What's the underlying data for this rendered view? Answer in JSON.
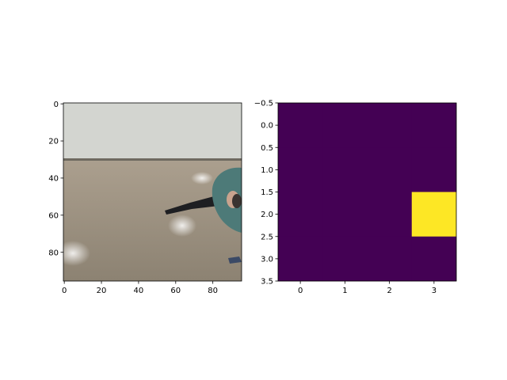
{
  "colors": {
    "background": "#ffffff",
    "axes": "#000000",
    "viridis_low": "#440154",
    "viridis_high": "#fde725",
    "wall": "#d3d5d0",
    "floor": "#ab9f8e",
    "floor_dark": "#8c8272",
    "shirt": "#4d7a78",
    "pants": "#1e1f22"
  },
  "chart_data": [
    {
      "type": "image",
      "subject": "photograph",
      "grid": false,
      "xlim": [
        -0.5,
        95.5
      ],
      "ylim": [
        95.5,
        -0.5
      ],
      "xticks": [
        0,
        20,
        40,
        60,
        80
      ],
      "yticks": [
        0,
        20,
        40,
        60,
        80
      ],
      "xtick_labels": [
        "0",
        "20",
        "40",
        "60",
        "80"
      ],
      "ytick_labels": [
        "0",
        "20",
        "40",
        "60",
        "80"
      ]
    },
    {
      "type": "heatmap",
      "colormap": "viridis",
      "grid": false,
      "rows": 4,
      "cols": 4,
      "values": [
        [
          0,
          0,
          0,
          0
        ],
        [
          0,
          0,
          0,
          0
        ],
        [
          0,
          0,
          0,
          1
        ],
        [
          0,
          0,
          0,
          0
        ]
      ],
      "xlim": [
        -0.5,
        3.5
      ],
      "ylim": [
        3.5,
        -0.5
      ],
      "xticks": [
        0,
        1,
        2,
        3
      ],
      "yticks": [
        -0.5,
        0.0,
        0.5,
        1.0,
        1.5,
        2.0,
        2.5,
        3.0,
        3.5
      ],
      "xtick_labels": [
        "0",
        "1",
        "2",
        "3"
      ],
      "ytick_labels": [
        "−0.5",
        "0.0",
        "0.5",
        "1.0",
        "1.5",
        "2.0",
        "2.5",
        "3.0",
        "3.5"
      ]
    }
  ]
}
